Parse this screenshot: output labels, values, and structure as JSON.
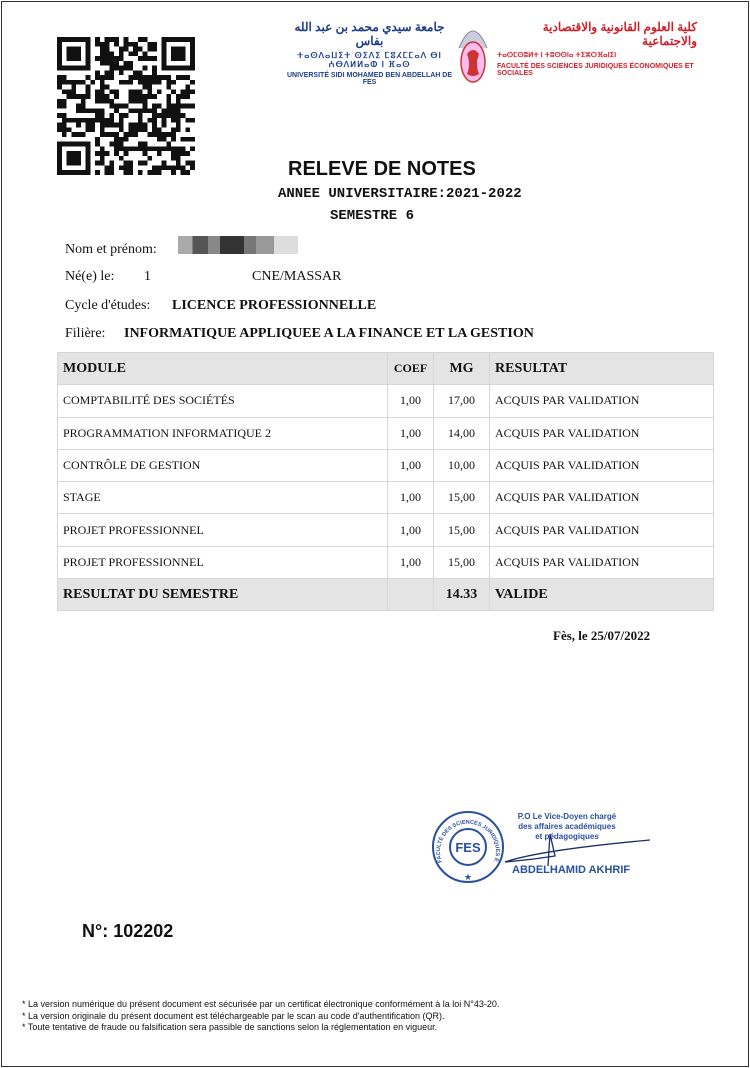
{
  "header": {
    "university_ar": "جامعة سيدي محمد بن عبد الله بفاس",
    "university_tifinagh": "ⵜⴰⵙⴷⴰⵡⵉⵜ ⵙⵉⴷⵉ ⵎⵓⵃⵎⵎⴰⴷ ⴱⵏ ⵄⴱⴷⵍⵍⴰⵀ ⵏ ⴼⴰⵙ",
    "university_fr": "UNIVERSITÉ SIDI MOHAMED BEN ABDELLAH DE FES",
    "faculty_ar": "كلية العلوم القانونية والاقتصادية والاجتماعية",
    "faculty_tifinagh": "ⵜⴰⵙⵎⵙⵓⵍⵜ ⵏ ⵜⵓⵙⵙⵏⴰ ⵜⵉⵣⵔⴼⴰⵏⵉⵏ",
    "faculty_fr": "FACULTÉ DES SCIENCES JURIDIQUES ÉCONOMIQUES ET SOCIALES",
    "university_color": "#1d3d8f",
    "faculty_color": "#d2202a"
  },
  "title": "RELEVE DE NOTES",
  "academic_year_label": "ANNEE UNIVERSITAIRE:",
  "academic_year": "2021-2022",
  "semester": "SEMESTRE 6",
  "student": {
    "name_label": "Nom et prénom:",
    "birth_label": "Né(e) le:",
    "birth_value": "1",
    "cne_label": "CNE/MASSAR",
    "cycle_label": "Cycle d'études:",
    "cycle_value": "LICENCE PROFESSIONNELLE",
    "filiere_label": "Filière:",
    "filiere_value": "INFORMATIQUE APPLIQUEE A LA FINANCE ET LA GESTION"
  },
  "table": {
    "headers": [
      "MODULE",
      "COEF",
      "MG",
      "RESULTAT"
    ],
    "rows": [
      {
        "module": "COMPTABILITÉ DES SOCIÉTÉS",
        "coef": "1,00",
        "mg": "17,00",
        "resultat": "ACQUIS PAR VALIDATION"
      },
      {
        "module": "PROGRAMMATION INFORMATIQUE 2",
        "coef": "1,00",
        "mg": "14,00",
        "resultat": "ACQUIS PAR VALIDATION"
      },
      {
        "module": "CONTRÔLE DE GESTION",
        "coef": "1,00",
        "mg": "10,00",
        "resultat": "ACQUIS PAR VALIDATION"
      },
      {
        "module": "STAGE",
        "coef": "1,00",
        "mg": "15,00",
        "resultat": "ACQUIS PAR VALIDATION"
      },
      {
        "module": "PROJET PROFESSIONNEL",
        "coef": "1,00",
        "mg": "15,00",
        "resultat": "ACQUIS PAR VALIDATION"
      },
      {
        "module": "PROJET PROFESSIONNEL",
        "coef": "1,00",
        "mg": "15,00",
        "resultat": "ACQUIS PAR VALIDATION"
      }
    ],
    "total": {
      "label": "RESULTAT DU SEMESTRE",
      "mg": "14.33",
      "resultat": "VALIDE"
    }
  },
  "date": "Fès, le 25/07/2022",
  "signature": {
    "stamp_text": "FACULTÉ DES SCIENCES JURIDIQUES ÉCONOMIQUES ET SOCIALES",
    "stamp_center": "FES",
    "line1": "P.O Le Vice-Doyen chargé",
    "line2": "des affaires académiques",
    "line3": "et pédagogiques",
    "name": "ABDELHAMID AKHRIF"
  },
  "number": "N°: 102202",
  "notes": [
    "* La version numérique du présent document est sécurisée par un certificat électronique conformément à la loi N°43-20.",
    "* La version originale du présent document est téléchargeable par le scan au code d'authentification (QR).",
    "* Toute tentative de fraude ou falsification sera passible de sanctions selon la réglementation en vigueur."
  ]
}
